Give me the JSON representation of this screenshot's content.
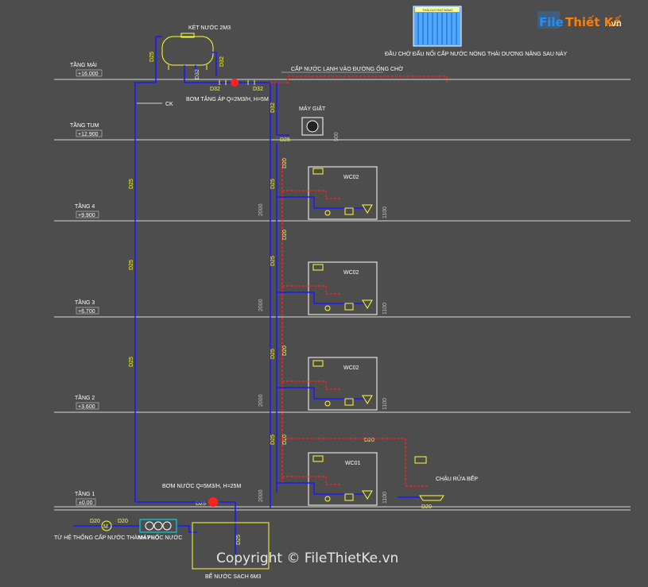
{
  "logo": {
    "part1": "File",
    "part2": "Thiết Kế",
    "part3": ".vn"
  },
  "watermark": "Copyright © FileThietKe.vn",
  "levels": [
    {
      "name": "TẦNG MÁI",
      "elev": "+16.000"
    },
    {
      "name": "TẦNG TUM",
      "elev": "+12.900"
    },
    {
      "name": "TẦNG 4",
      "elev": "+9.900"
    },
    {
      "name": "TẦNG 3",
      "elev": "+6.700"
    },
    {
      "name": "TẦNG 2",
      "elev": "+3.600"
    },
    {
      "name": "TẦNG 1",
      "elev": "±0.00"
    }
  ],
  "labels": {
    "roof_tank": "KÉT NƯỚC 2M3",
    "solar_note": "ĐẦU CHỜ ĐẤU NỐI CẤP NƯỚC NÓNG THÁI DƯƠNG NĂNG SAU NÀY",
    "cold_supply": "CẤP NƯỚC LẠNH VÀO ĐƯỜNG ỐNG CHỜ",
    "booster_pump": "BƠM TĂNG ÁP Q=2M3/H, H=5M",
    "washing_machine": "MÁY GIẶT",
    "ck": "CK",
    "main_pump": "BƠM NƯỚC Q=5M3/H, H=25M",
    "kitchen_sink": "CHẬU RỬA BẾP",
    "city_supply": "TỪ HỆ THỐNG CẤP NƯỚC THÀNH PHỐ",
    "filter": "MÁY LỌC NƯỚC",
    "clean_tank": "BỂ NƯỚC SẠCH 6M3",
    "solar_panel": "THÁI DƯƠNG NĂNG"
  },
  "wc": [
    "WC02",
    "WC02",
    "WC02",
    "WC01"
  ],
  "pipes": {
    "d25": "D25",
    "d32": "D32",
    "d20": "D20"
  },
  "dims": {
    "h2000": "2000",
    "h1100": "1100",
    "h500": "500"
  },
  "colors": {
    "cold": "#1a1aff",
    "hot": "#ff2020",
    "fixture": "#ffff33",
    "line": "#e6e6e6",
    "bg": "#4d4d4d"
  }
}
